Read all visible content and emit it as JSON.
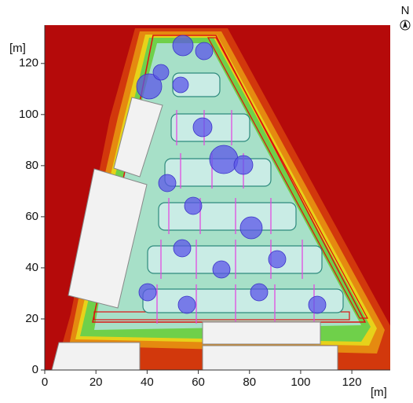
{
  "chart_data": {
    "type": "map",
    "x_label": "[m]",
    "y_label": "[m]",
    "compass": "N",
    "xlim": [
      0,
      135
    ],
    "ylim": [
      0,
      135
    ],
    "xticks": [
      0,
      20,
      40,
      60,
      80,
      100,
      120
    ],
    "yticks": [
      0,
      20,
      40,
      60,
      80,
      100,
      120
    ]
  }
}
